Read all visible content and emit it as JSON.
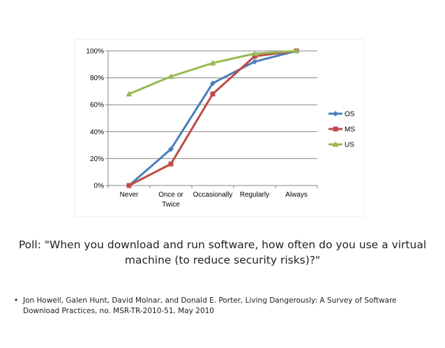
{
  "chart_data": {
    "type": "line",
    "categories": [
      "Never",
      "Once or\nTwice",
      "Occasionally",
      "Regularly",
      "Always"
    ],
    "ylim": [
      0,
      100
    ],
    "yticks": [
      0,
      20,
      40,
      60,
      80,
      100
    ],
    "ytick_labels": [
      "0%",
      "20%",
      "40%",
      "60%",
      "80%",
      "100%"
    ],
    "grid": true,
    "legend": "right",
    "series": [
      {
        "name": "OS",
        "values": [
          0,
          27,
          76,
          92,
          100
        ],
        "color": "#4a7ebb",
        "marker": "diamond"
      },
      {
        "name": "MS",
        "values": [
          0,
          16,
          68,
          96,
          100
        ],
        "color": "#be4b48",
        "marker": "square"
      },
      {
        "name": "US",
        "values": [
          68,
          81,
          91,
          98,
          100
        ],
        "color": "#98b954",
        "marker": "triangle"
      }
    ]
  },
  "caption": "Poll: \"When you download and run software, how often do you use a virtual machine (to reduce security risks)?\"",
  "reference": {
    "bullet": "•",
    "text": "Jon Howell, Galen Hunt, David Molnar, and Donald E. Porter, Living Dangerously: A Survey of Software Download Practices, no. MSR-TR-2010-51, May 2010"
  }
}
